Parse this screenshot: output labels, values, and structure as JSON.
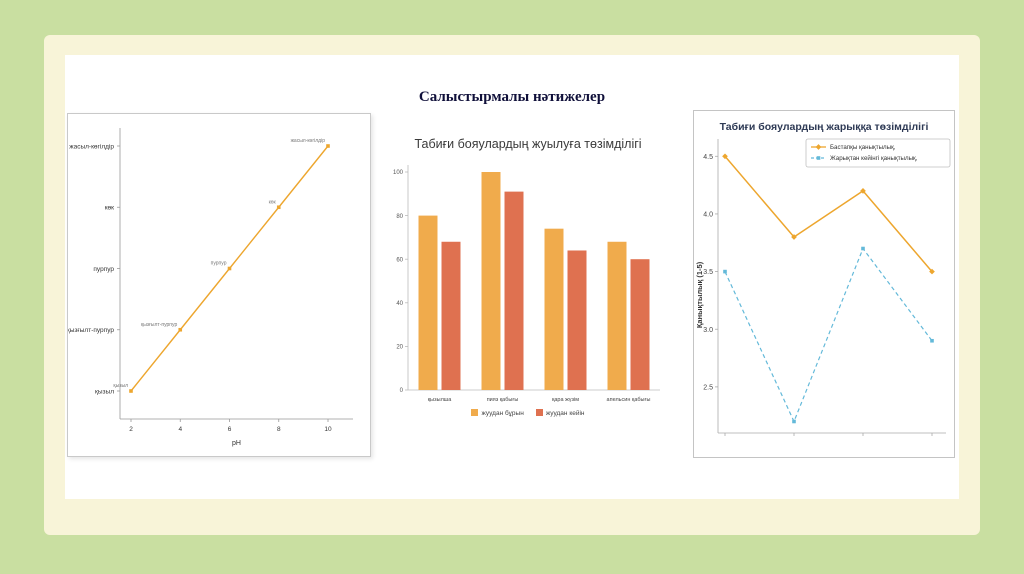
{
  "slide": {
    "title": "Салыстырмалы нәтижелер",
    "colors": {
      "background": "#c9dfa1",
      "frame": "#f8f4d8",
      "content": "#ffffff",
      "title_text": "#10103a",
      "accent_orange": "#eda62e",
      "accent_red": "#df7150",
      "accent_blue": "#63b9d9"
    }
  },
  "chart_data": [
    {
      "type": "line",
      "title": "",
      "xlabel": "pH",
      "x_ticks": [
        2,
        4,
        6,
        8,
        10
      ],
      "y_categories": [
        "қызыл",
        "қызғылт-пурпур",
        "пурпур",
        "көк",
        "жасыл-көгілдір"
      ],
      "points": [
        {
          "x": 2,
          "label": "қызыл"
        },
        {
          "x": 4,
          "label": "қызғылт-пурпур"
        },
        {
          "x": 6,
          "label": "пурпур"
        },
        {
          "x": 8,
          "label": "көк"
        },
        {
          "x": 10,
          "label": "жасыл-көгілдір"
        }
      ],
      "line_color": "#eda62e"
    },
    {
      "type": "bar",
      "title": "Табиғи бояулардың жуылуға төзімділігі",
      "categories": [
        "қызылша",
        "пияз қабығы",
        "қара жүзім",
        "апельсин қабығы"
      ],
      "series": [
        {
          "name": "жуудан бұрын",
          "color": "#f0ab4c",
          "values": [
            80,
            100,
            74,
            68
          ]
        },
        {
          "name": "жуудан кейін",
          "color": "#df7150",
          "values": [
            68,
            91,
            64,
            60
          ]
        }
      ],
      "ylim": [
        0,
        100
      ],
      "yticks": [
        0,
        20,
        40,
        60,
        80,
        100
      ],
      "legend_position": "bottom"
    },
    {
      "type": "line",
      "title": "Табиғи бояулардың жарыққа төзімділігі",
      "ylabel": "Қанықтылық (1-5)",
      "categories": [
        "",
        "",
        "",
        ""
      ],
      "series": [
        {
          "name": "Бастапқы қанықтылық,",
          "color": "#eda62e",
          "dashed": false,
          "values": [
            4.5,
            3.8,
            4.2,
            3.5
          ]
        },
        {
          "name": "Жарықтан кейінгі қанықтылық,",
          "color": "#63b9d9",
          "dashed": true,
          "values": [
            3.5,
            2.2,
            3.7,
            2.9
          ]
        }
      ],
      "ylim": [
        2.1,
        4.65
      ],
      "yticks": [
        2.5,
        3.0,
        3.5,
        4.0,
        4.5
      ],
      "legend_position": "top-right"
    }
  ]
}
